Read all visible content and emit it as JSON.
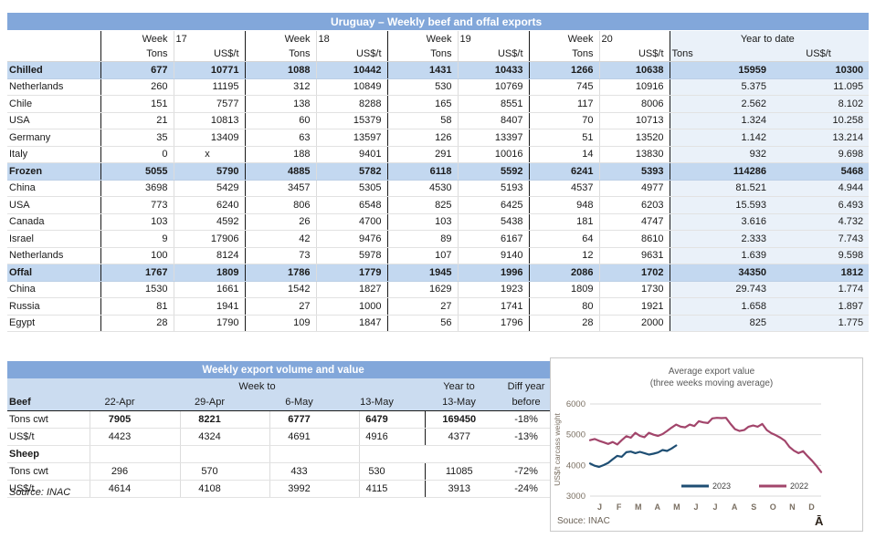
{
  "colors": {
    "title_bar": "#82A7DA",
    "subtotal_row": "#C3D8F0",
    "table_header": "#CBDCF0",
    "ytd_band": "#EAF1F9",
    "group_border": "#1a1a1a",
    "line_2023": "#1E4E73",
    "line_2022": "#A2456B"
  },
  "table1": {
    "title": "Uruguay – Weekly beef and offal exports",
    "week_label": "Week",
    "weeks": [
      "17",
      "18",
      "19",
      "20"
    ],
    "ytd_label": "Year to date",
    "tons_label": "Tons",
    "usdt_label": "US$/t",
    "rows": [
      {
        "label": "Chilled",
        "type": "subtotal",
        "cells": [
          "677",
          "10771",
          "1088",
          "10442",
          "1431",
          "10433",
          "1266",
          "10638",
          "15959",
          "10300"
        ]
      },
      {
        "label": "Netherlands",
        "type": "detail",
        "cells": [
          "260",
          "11195",
          "312",
          "10849",
          "530",
          "10769",
          "745",
          "10916",
          "5.375",
          "11.095"
        ]
      },
      {
        "label": "Chile",
        "type": "detail",
        "cells": [
          "151",
          "7577",
          "138",
          "8288",
          "165",
          "8551",
          "117",
          "8006",
          "2.562",
          "8.102"
        ]
      },
      {
        "label": "USA",
        "type": "detail",
        "cells": [
          "21",
          "10813",
          "60",
          "15379",
          "58",
          "8407",
          "70",
          "10713",
          "1.324",
          "10.258"
        ]
      },
      {
        "label": "Germany",
        "type": "detail",
        "cells": [
          "35",
          "13409",
          "63",
          "13597",
          "126",
          "13397",
          "51",
          "13520",
          "1.142",
          "13.214"
        ]
      },
      {
        "label": "Italy",
        "type": "detail",
        "cells": [
          "0",
          "x",
          "188",
          "9401",
          "291",
          "10016",
          "14",
          "13830",
          "932",
          "9.698"
        ]
      },
      {
        "label": "Frozen",
        "type": "subtotal",
        "cells": [
          "5055",
          "5790",
          "4885",
          "5782",
          "6118",
          "5592",
          "6241",
          "5393",
          "114286",
          "5468"
        ]
      },
      {
        "label": "China",
        "type": "detail",
        "cells": [
          "3698",
          "5429",
          "3457",
          "5305",
          "4530",
          "5193",
          "4537",
          "4977",
          "81.521",
          "4.944"
        ]
      },
      {
        "label": "USA",
        "type": "detail",
        "cells": [
          "773",
          "6240",
          "806",
          "6548",
          "825",
          "6425",
          "948",
          "6203",
          "15.593",
          "6.493"
        ]
      },
      {
        "label": "Canada",
        "type": "detail",
        "cells": [
          "103",
          "4592",
          "26",
          "4700",
          "103",
          "5438",
          "181",
          "4747",
          "3.616",
          "4.732"
        ]
      },
      {
        "label": "Israel",
        "type": "detail",
        "cells": [
          "9",
          "17906",
          "42",
          "9476",
          "89",
          "6167",
          "64",
          "8610",
          "2.333",
          "7.743"
        ]
      },
      {
        "label": "Netherlands",
        "type": "detail",
        "cells": [
          "100",
          "8124",
          "73",
          "5978",
          "107",
          "9140",
          "12",
          "9631",
          "1.639",
          "9.598"
        ]
      },
      {
        "label": "Offal",
        "type": "subtotal",
        "cells": [
          "1767",
          "1809",
          "1786",
          "1779",
          "1945",
          "1996",
          "2086",
          "1702",
          "34350",
          "1812"
        ]
      },
      {
        "label": "China",
        "type": "detail",
        "cells": [
          "1530",
          "1661",
          "1542",
          "1827",
          "1629",
          "1923",
          "1809",
          "1730",
          "29.743",
          "1.774"
        ]
      },
      {
        "label": "Russia",
        "type": "detail",
        "cells": [
          "81",
          "1941",
          "27",
          "1000",
          "27",
          "1741",
          "80",
          "1921",
          "1.658",
          "1.897"
        ]
      },
      {
        "label": "Egypt",
        "type": "detail",
        "cells": [
          "28",
          "1790",
          "109",
          "1847",
          "56",
          "1796",
          "28",
          "2000",
          "825",
          "1.775"
        ]
      }
    ]
  },
  "table2": {
    "title": "Weekly export volume and value",
    "week_to_label": "Week to",
    "year_to_label": "Year to",
    "diff_label_1": "Diff year",
    "diff_label_2": "before",
    "col_headers": [
      "22-Apr",
      "29-Apr",
      "6-May",
      "13-May",
      "13-May"
    ],
    "sections": [
      {
        "name": "Beef",
        "rows": [
          {
            "label": "Tons cwt",
            "bold": true,
            "cells": [
              "7905",
              "8221",
              "6777",
              "6479",
              "169450",
              "-18%"
            ]
          },
          {
            "label": "US$/t",
            "bold": false,
            "cells": [
              "4423",
              "4324",
              "4691",
              "4916",
              "4377",
              "-13%"
            ]
          }
        ]
      },
      {
        "name": "Sheep",
        "rows": [
          {
            "label": "Tons cwt",
            "bold": false,
            "cells": [
              "296",
              "570",
              "433",
              "530",
              "11085",
              "-72%"
            ]
          },
          {
            "label": "US$/t",
            "bold": false,
            "cells": [
              "4614",
              "4108",
              "3992",
              "4115",
              "3913",
              "-24%"
            ]
          }
        ]
      }
    ],
    "source": "Source: INAC"
  },
  "chart_data": {
    "type": "line",
    "title": "Average export value",
    "subtitle": "(three weeks moving average)",
    "ylabel": "US$/t carcass weight",
    "ylim": [
      3000,
      6000
    ],
    "yticks": [
      3000,
      4000,
      5000,
      6000
    ],
    "x_months": [
      "J",
      "F",
      "M",
      "A",
      "M",
      "J",
      "J",
      "A",
      "S",
      "O",
      "N",
      "D"
    ],
    "weeks_per_year": 52,
    "grid": true,
    "legend_position": "inside-bottom-right",
    "series": [
      {
        "name": "2023",
        "color": "#1E4E73",
        "values": [
          4060,
          3990,
          3950,
          4010,
          4080,
          4200,
          4310,
          4280,
          4430,
          4450,
          4400,
          4440,
          4400,
          4350,
          4380,
          4420,
          4500,
          4470,
          4550,
          4650
        ]
      },
      {
        "name": "2022",
        "color": "#A2456B",
        "values": [
          4820,
          4860,
          4800,
          4750,
          4700,
          4760,
          4680,
          4820,
          4950,
          4900,
          5060,
          4960,
          4920,
          5060,
          5000,
          4960,
          5020,
          5120,
          5230,
          5330,
          5260,
          5240,
          5330,
          5280,
          5440,
          5400,
          5380,
          5530,
          5550,
          5540,
          5550,
          5350,
          5180,
          5120,
          5150,
          5260,
          5300,
          5260,
          5350,
          5150,
          5050,
          4980,
          4900,
          4800,
          4600,
          4480,
          4400,
          4460,
          4300,
          4150,
          3980,
          3780
        ]
      }
    ],
    "source": "Souce: INAC",
    "corner_glyph": "Ā"
  }
}
